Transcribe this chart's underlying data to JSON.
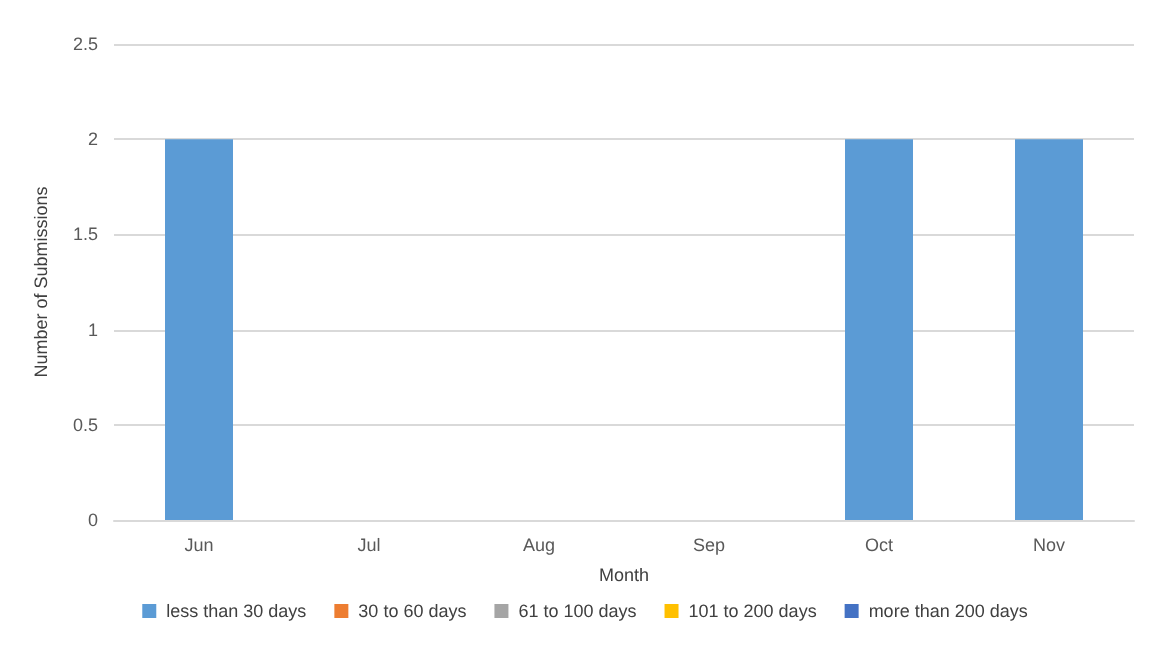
{
  "chart_data": {
    "type": "bar",
    "stacked": true,
    "xlabel": "Month",
    "ylabel": "Number of Submissions",
    "categories": [
      "Jun",
      "Jul",
      "Aug",
      "Sep",
      "Oct",
      "Nov"
    ],
    "series": [
      {
        "name": "less than 30 days",
        "color": "#5b9bd5",
        "values": [
          2,
          0,
          0,
          0,
          2,
          2
        ]
      },
      {
        "name": "30 to 60 days",
        "color": "#ed7d31",
        "values": [
          0,
          0,
          0,
          0,
          0,
          0
        ]
      },
      {
        "name": "61 to 100 days",
        "color": "#a5a5a5",
        "values": [
          0,
          0,
          0,
          0,
          0,
          0
        ]
      },
      {
        "name": "101 to 200 days",
        "color": "#ffc000",
        "values": [
          0,
          0,
          0,
          0,
          0,
          0
        ]
      },
      {
        "name": "more than 200 days",
        "color": "#4472c4",
        "values": [
          0,
          0,
          0,
          0,
          0,
          0
        ]
      }
    ],
    "ylim": [
      0,
      2.5
    ],
    "yticks": [
      0,
      0.5,
      1,
      1.5,
      2,
      2.5
    ],
    "grid": "y",
    "legend": "bottom"
  }
}
